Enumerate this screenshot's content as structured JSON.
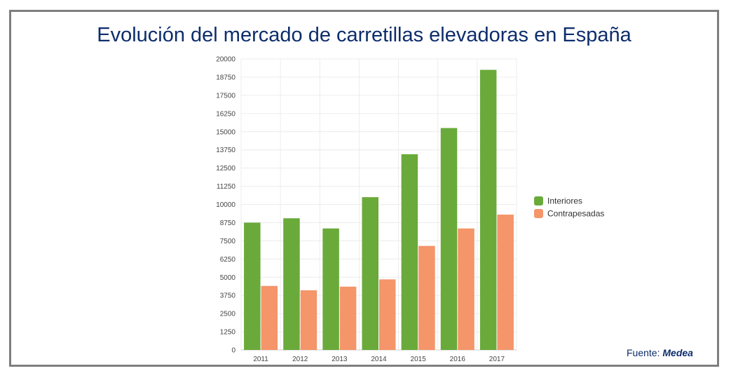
{
  "title": "Evolución del mercado de carretillas elevadoras en España",
  "source": {
    "prefix": "Fuente:",
    "org": "Medea"
  },
  "colors": {
    "title": "#0d2d6c",
    "frame": "#7f7f7f",
    "interiores": "#6aaa3a",
    "contrapesadas": "#f4956a",
    "grid": "#ececec",
    "axis_text": "#444444"
  },
  "chart_data": {
    "type": "bar",
    "title": "Evolución del mercado de carretillas elevadoras en España",
    "xlabel": "",
    "ylabel": "",
    "categories": [
      "2011",
      "2012",
      "2013",
      "2014",
      "2015",
      "2016",
      "2017"
    ],
    "series": [
      {
        "name": "Interiores",
        "values": [
          8750,
          9050,
          8350,
          10500,
          13450,
          15250,
          19250
        ]
      },
      {
        "name": "Contrapesadas",
        "values": [
          4400,
          4100,
          4350,
          4850,
          7150,
          8350,
          9300
        ]
      }
    ],
    "ylim": [
      0,
      20000
    ],
    "yticks": [
      "0",
      "1250",
      "2500",
      "3750",
      "5000",
      "6250",
      "7500",
      "8750",
      "10000",
      "11250",
      "12500",
      "13750",
      "15000",
      "16250",
      "17500",
      "18750",
      "20000"
    ],
    "grid": true,
    "legend": "right"
  }
}
